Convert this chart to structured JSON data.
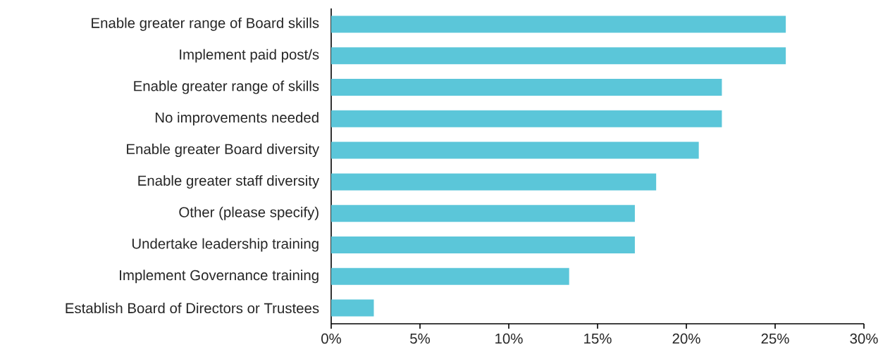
{
  "chart_data": {
    "type": "bar",
    "orientation": "horizontal",
    "categories": [
      "Enable greater range of Board skills",
      "Implement paid post/s",
      "Enable greater range of skills",
      "No improvements needed",
      "Enable greater Board diversity",
      "Enable greater staff diversity",
      "Other (please specify)",
      "Undertake leadership training",
      "Implement Governance training",
      "Establish Board of Directors or Trustees"
    ],
    "values": [
      25.6,
      25.6,
      22.0,
      22.0,
      20.7,
      18.3,
      17.1,
      17.1,
      13.4,
      2.4
    ],
    "color": "#5bc6d9",
    "xlim": [
      0,
      30
    ],
    "xticks": [
      {
        "value": 0,
        "label": "0%"
      },
      {
        "value": 5,
        "label": "5%"
      },
      {
        "value": 10,
        "label": "10%"
      },
      {
        "value": 15,
        "label": "15%"
      },
      {
        "value": 20,
        "label": "20%"
      },
      {
        "value": 25,
        "label": "25%"
      },
      {
        "value": 30,
        "label": "30%"
      }
    ],
    "grid": false
  }
}
